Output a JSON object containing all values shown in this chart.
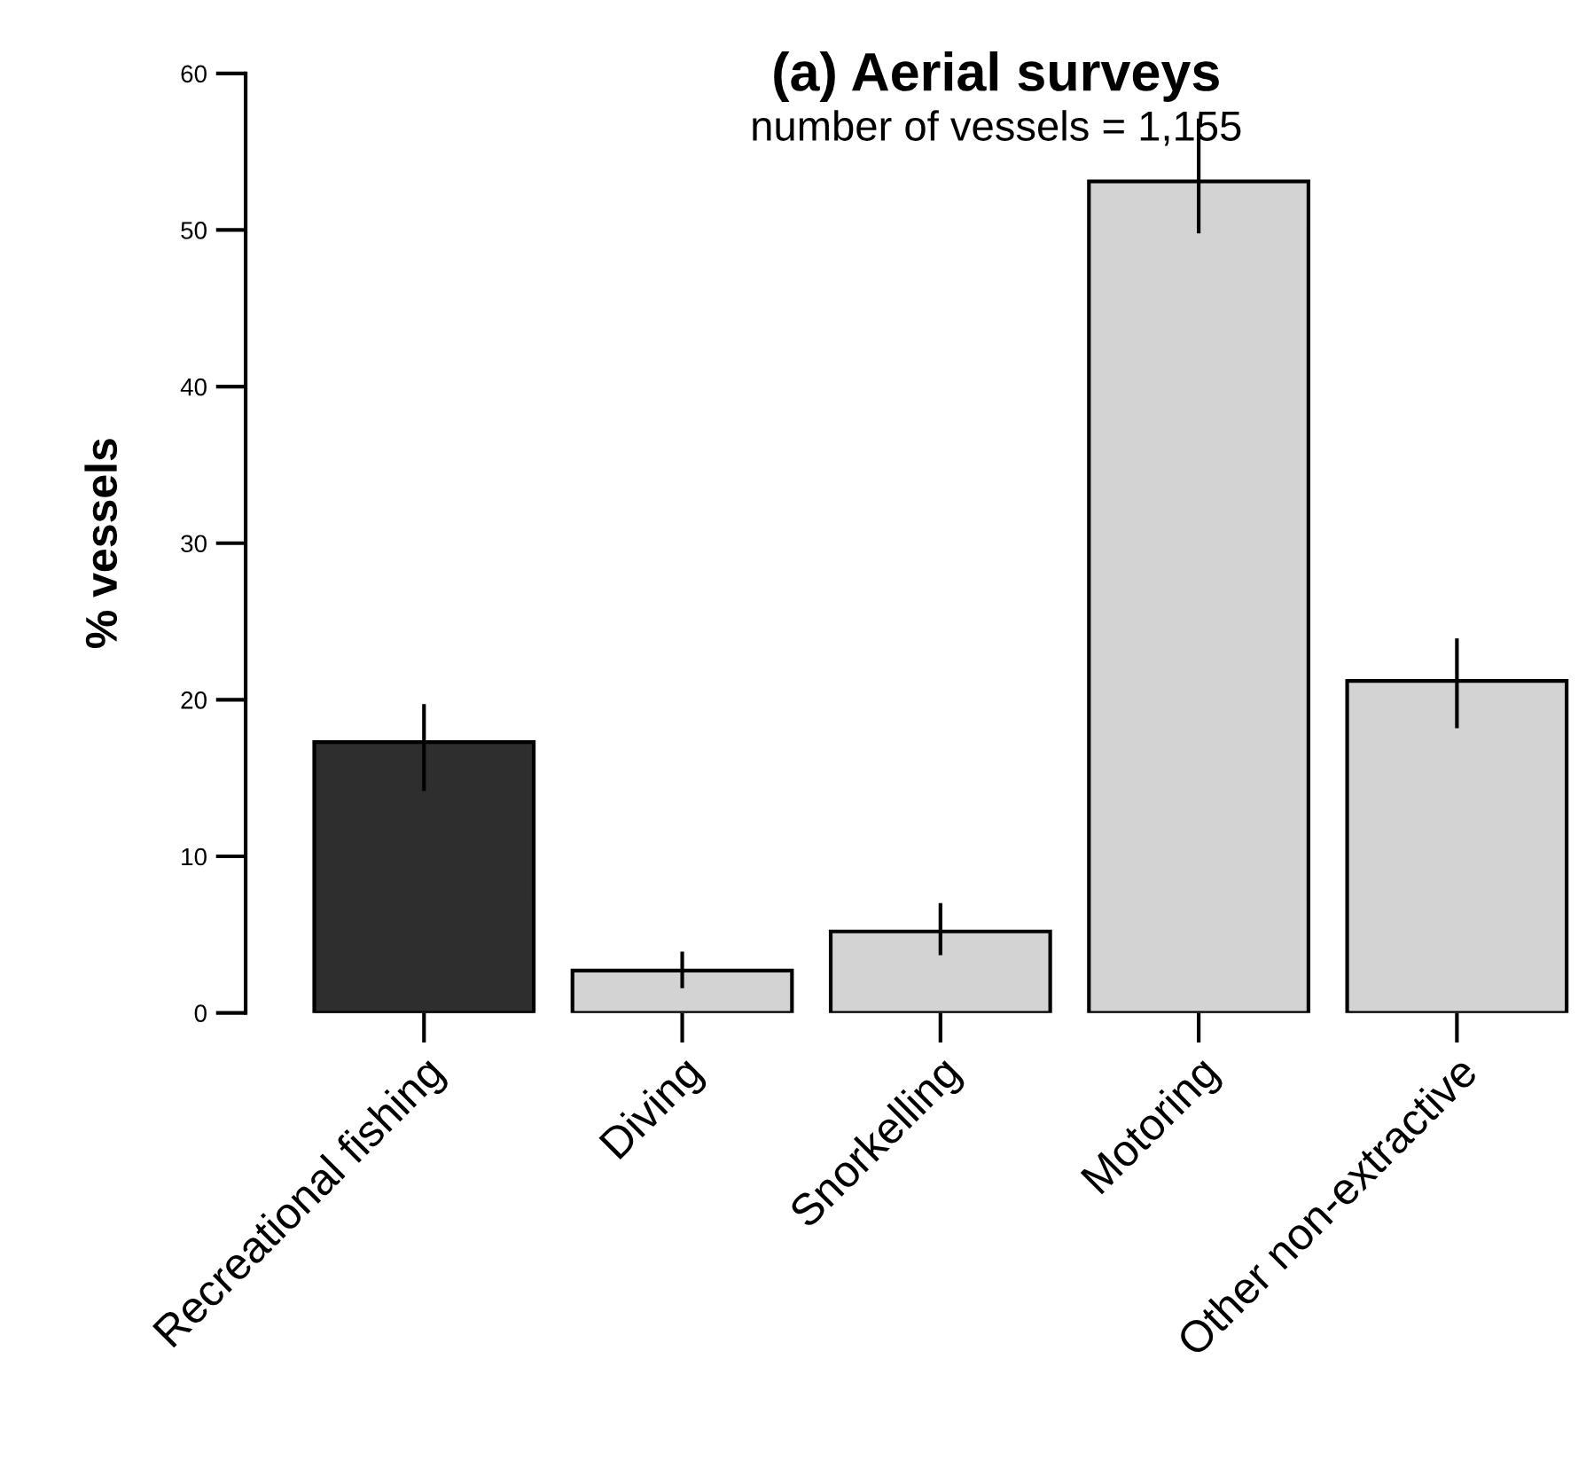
{
  "chart_data": {
    "type": "bar",
    "title": "(a) Aerial surveys",
    "subtitle": "number of vessels = 1,155",
    "ylabel": "% vessels",
    "categories": [
      "Recreational fishing",
      "Diving",
      "Snorkelling",
      "Motoring",
      "Other non-extractive"
    ],
    "values": [
      17.3,
      2.7,
      5.2,
      53.1,
      21.2
    ],
    "errors": [
      [
        14.3,
        19.6
      ],
      [
        1.7,
        3.8
      ],
      [
        3.8,
        6.9
      ],
      [
        49.9,
        57.0
      ],
      [
        18.3,
        23.8
      ]
    ],
    "colors": [
      "#2e2e2e",
      "#d3d3d3",
      "#d3d3d3",
      "#d3d3d3",
      "#d3d3d3"
    ],
    "ylim": [
      0,
      60
    ],
    "yticks": [
      0,
      10,
      20,
      30,
      40,
      50,
      60
    ],
    "grid": false,
    "legend": false
  }
}
